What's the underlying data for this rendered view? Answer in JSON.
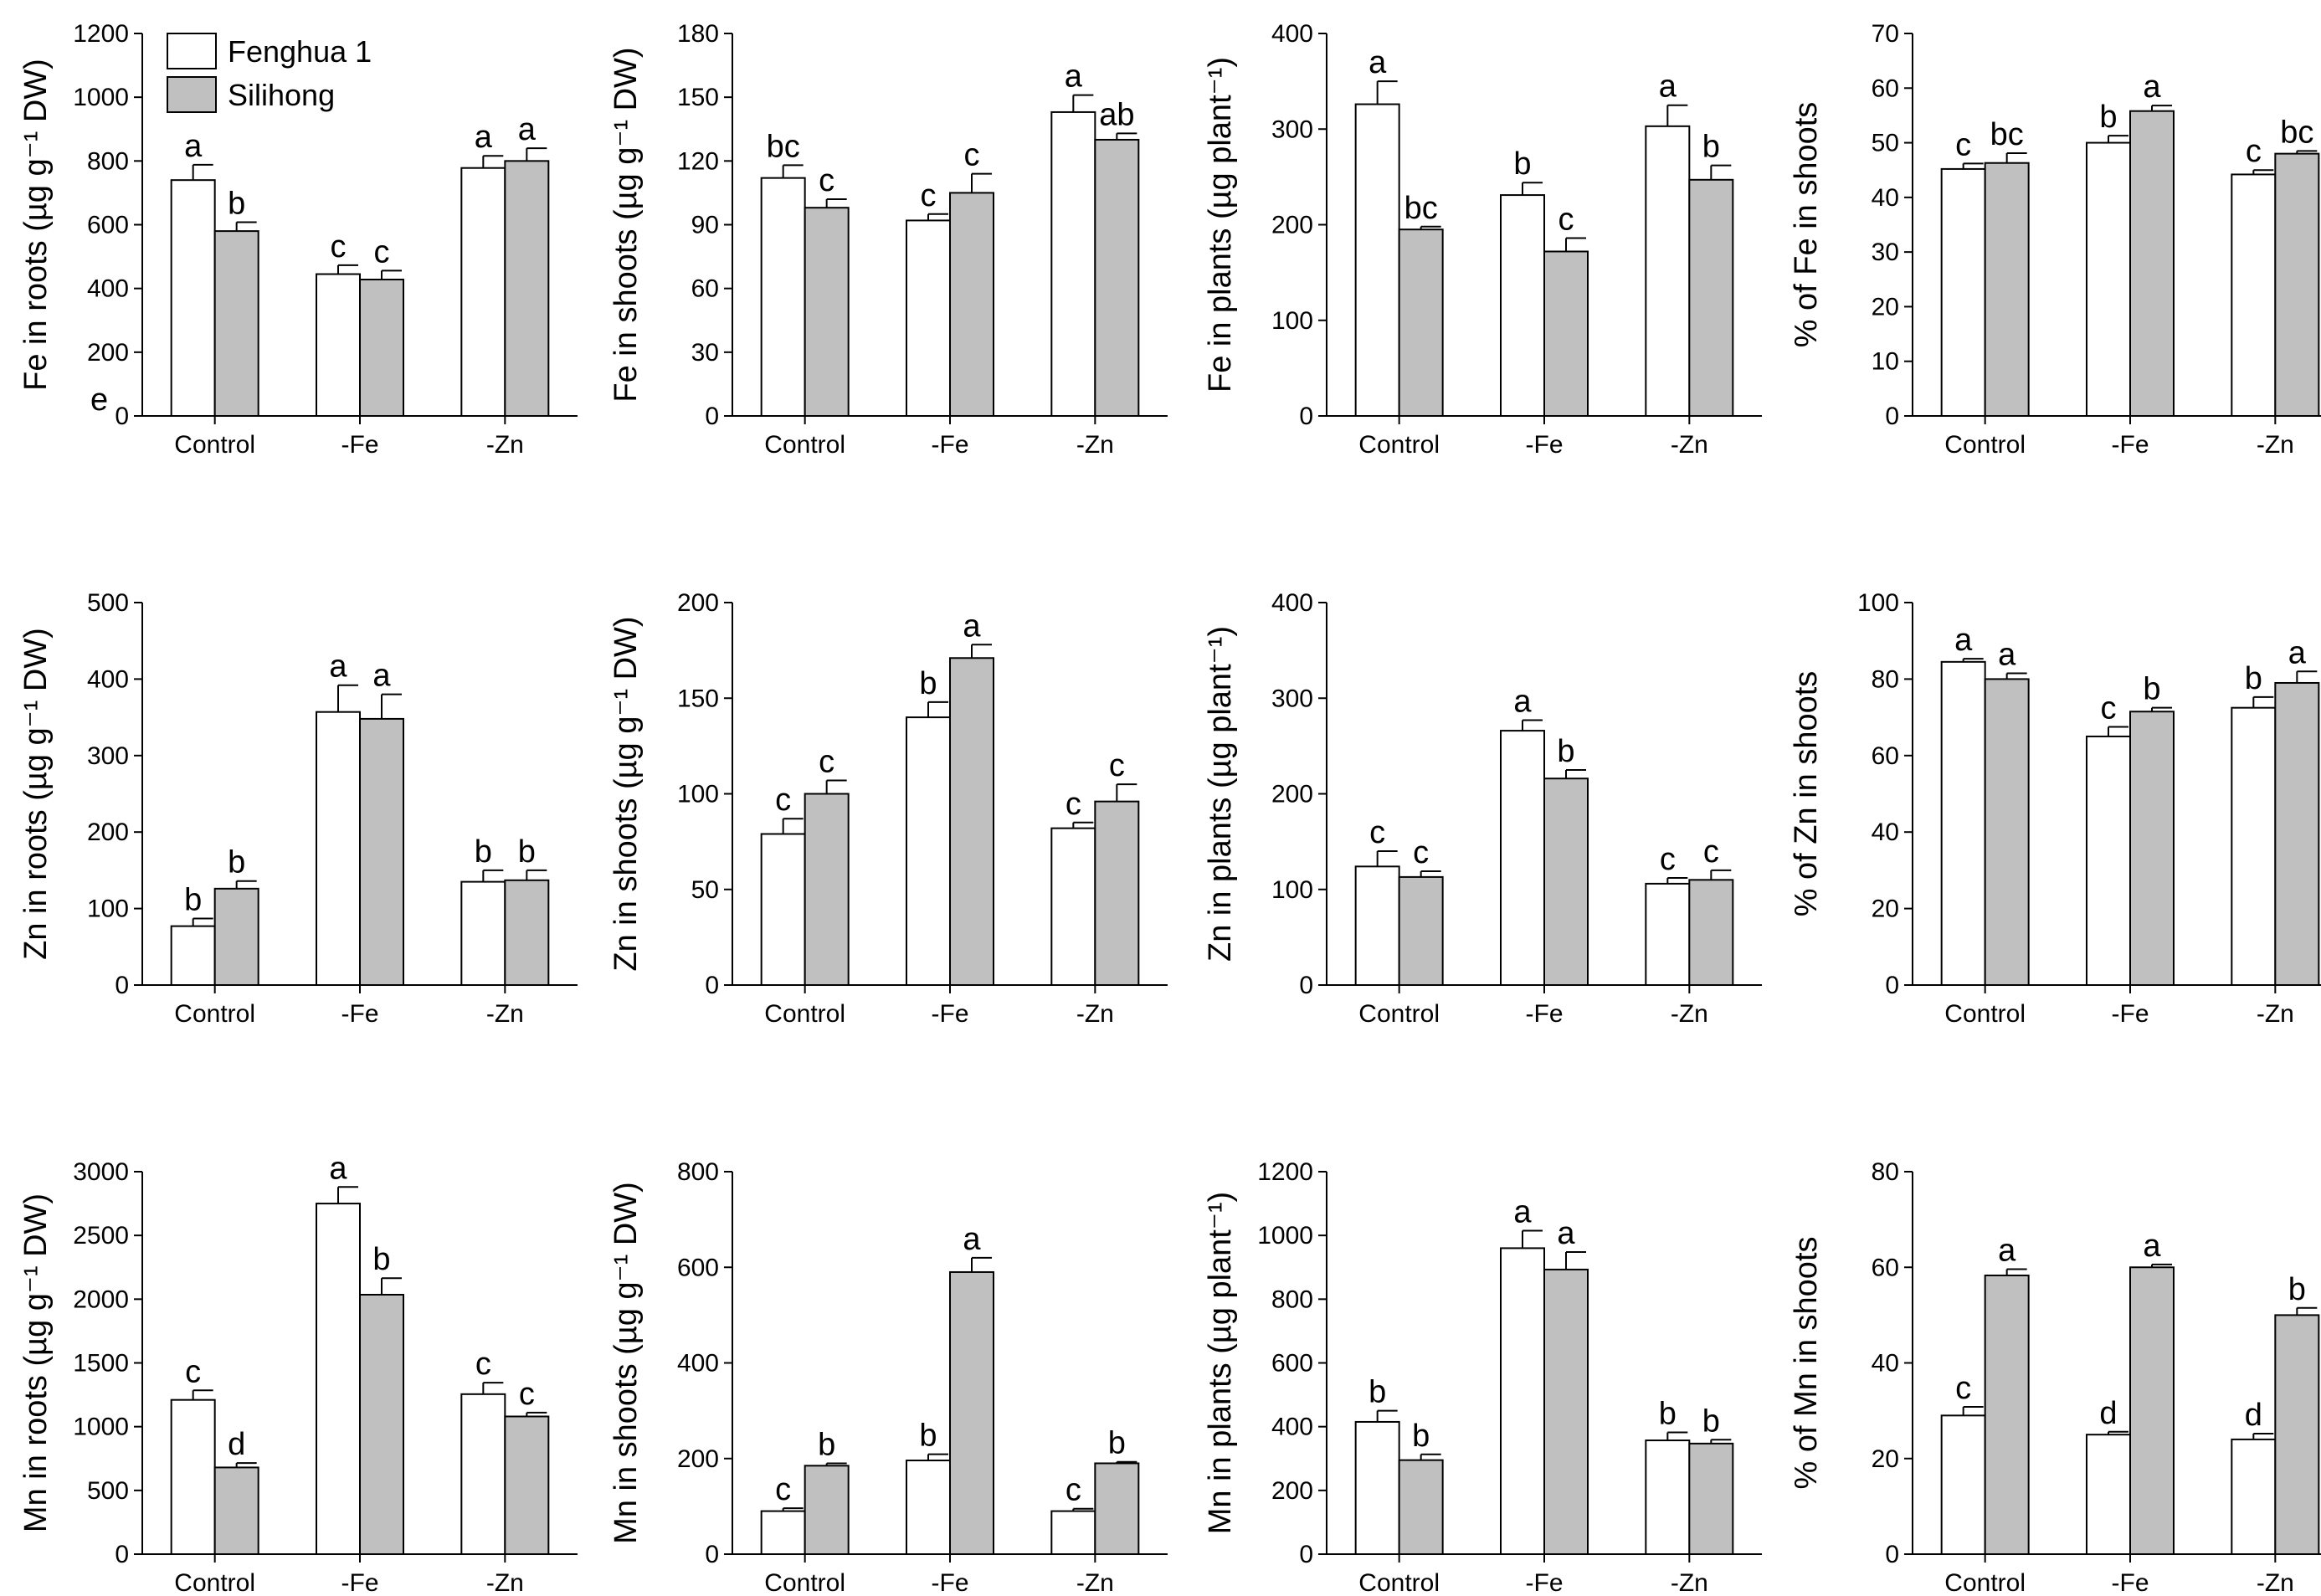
{
  "legend": [
    {
      "label": "Fenghua 1",
      "color": "#ffffff"
    },
    {
      "label": "Silihong",
      "color": "#c0c0c0"
    }
  ],
  "categories": [
    "Control",
    "-Fe",
    "-Zn"
  ],
  "panel_letter": "e",
  "chart_data": [
    {
      "type": "bar",
      "title": "",
      "ylabel": "Fe in roots (µg g⁻¹ DW)",
      "ylim": [
        0,
        1200
      ],
      "yticks": [
        0,
        200,
        400,
        600,
        800,
        1000,
        1200
      ],
      "categories": [
        "Control",
        "-Fe",
        "-Zn"
      ],
      "series": [
        {
          "name": "Fenghua 1",
          "values": [
            740,
            445,
            778
          ],
          "errors": [
            48,
            28,
            38
          ],
          "letters": [
            "a",
            "c",
            "a"
          ]
        },
        {
          "name": "Silihong",
          "values": [
            580,
            428,
            800
          ],
          "errors": [
            28,
            28,
            40
          ],
          "letters": [
            "b",
            "c",
            "a"
          ]
        }
      ]
    },
    {
      "type": "bar",
      "title": "",
      "ylabel": "Fe in shoots (µg g⁻¹ DW)",
      "ylim": [
        0,
        180
      ],
      "yticks": [
        0,
        30,
        60,
        90,
        120,
        150,
        180
      ],
      "categories": [
        "Control",
        "-Fe",
        "-Zn"
      ],
      "series": [
        {
          "name": "Fenghua 1",
          "values": [
            112,
            92,
            143
          ],
          "errors": [
            6,
            3,
            8
          ],
          "letters": [
            "bc",
            "c",
            "a"
          ]
        },
        {
          "name": "Silihong",
          "values": [
            98,
            105,
            130
          ],
          "errors": [
            4,
            9,
            3
          ],
          "letters": [
            "c",
            "c",
            "ab"
          ]
        }
      ]
    },
    {
      "type": "bar",
      "title": "",
      "ylabel": "Fe in plants (µg plant⁻¹)",
      "ylim": [
        0,
        400
      ],
      "yticks": [
        0,
        100,
        200,
        300,
        400
      ],
      "categories": [
        "Control",
        "-Fe",
        "-Zn"
      ],
      "series": [
        {
          "name": "Fenghua 1",
          "values": [
            326,
            231,
            303
          ],
          "errors": [
            24,
            13,
            22
          ],
          "letters": [
            "a",
            "b",
            "a"
          ]
        },
        {
          "name": "Silihong",
          "values": [
            195,
            172,
            247
          ],
          "errors": [
            3,
            14,
            15
          ],
          "letters": [
            "bc",
            "c",
            "b"
          ]
        }
      ]
    },
    {
      "type": "bar",
      "title": "",
      "ylabel": "% of Fe in shoots",
      "ylim": [
        0,
        70
      ],
      "yticks": [
        0,
        10,
        20,
        30,
        40,
        50,
        60,
        70
      ],
      "categories": [
        "Control",
        "-Fe",
        "-Zn"
      ],
      "series": [
        {
          "name": "Fenghua 1",
          "values": [
            45.2,
            50,
            44.2
          ],
          "errors": [
            1,
            1.3,
            0.8
          ],
          "letters": [
            "c",
            "b",
            "c"
          ]
        },
        {
          "name": "Silihong",
          "values": [
            46.3,
            55.8,
            48
          ],
          "errors": [
            1.8,
            1,
            0.5
          ],
          "letters": [
            "bc",
            "a",
            "bc"
          ]
        }
      ]
    },
    {
      "type": "bar",
      "title": "",
      "ylabel": "Zn in roots (µg g⁻¹ DW)",
      "ylim": [
        0,
        500
      ],
      "yticks": [
        0,
        100,
        200,
        300,
        400,
        500
      ],
      "categories": [
        "Control",
        "-Fe",
        "-Zn"
      ],
      "series": [
        {
          "name": "Fenghua 1",
          "values": [
            77,
            357,
            135
          ],
          "errors": [
            10,
            35,
            15
          ],
          "letters": [
            "b",
            "a",
            "b"
          ]
        },
        {
          "name": "Silihong",
          "values": [
            126,
            348,
            137
          ],
          "errors": [
            10,
            32,
            13
          ],
          "letters": [
            "b",
            "a",
            "b"
          ]
        }
      ]
    },
    {
      "type": "bar",
      "title": "",
      "ylabel": "Zn in shoots (µg g⁻¹ DW)",
      "ylim": [
        0,
        200
      ],
      "yticks": [
        0,
        50,
        100,
        150,
        200
      ],
      "categories": [
        "Control",
        "-Fe",
        "-Zn"
      ],
      "series": [
        {
          "name": "Fenghua 1",
          "values": [
            79,
            140,
            82
          ],
          "errors": [
            8,
            8,
            3
          ],
          "letters": [
            "c",
            "b",
            "c"
          ]
        },
        {
          "name": "Silihong",
          "values": [
            100,
            171,
            96
          ],
          "errors": [
            7,
            7,
            9
          ],
          "letters": [
            "c",
            "a",
            "c"
          ]
        }
      ]
    },
    {
      "type": "bar",
      "title": "",
      "ylabel": "Zn in plants (µg plant⁻¹)",
      "ylim": [
        0,
        400
      ],
      "yticks": [
        0,
        100,
        200,
        300,
        400
      ],
      "categories": [
        "Control",
        "-Fe",
        "-Zn"
      ],
      "series": [
        {
          "name": "Fenghua 1",
          "values": [
            124,
            266,
            106
          ],
          "errors": [
            16,
            11,
            6
          ],
          "letters": [
            "c",
            "a",
            "c"
          ]
        },
        {
          "name": "Silihong",
          "values": [
            113,
            216,
            110
          ],
          "errors": [
            6,
            9,
            10
          ],
          "letters": [
            "c",
            "b",
            "c"
          ]
        }
      ]
    },
    {
      "type": "bar",
      "title": "",
      "ylabel": "% of Zn in shoots",
      "ylim": [
        0,
        100
      ],
      "yticks": [
        0,
        20,
        40,
        60,
        80,
        100
      ],
      "categories": [
        "Control",
        "-Fe",
        "-Zn"
      ],
      "series": [
        {
          "name": "Fenghua 1",
          "values": [
            84.5,
            65,
            72.5
          ],
          "errors": [
            0.8,
            2.5,
            2.8
          ],
          "letters": [
            "a",
            "c",
            "b"
          ]
        },
        {
          "name": "Silihong",
          "values": [
            80,
            71.5,
            79
          ],
          "errors": [
            1.5,
            1,
            3
          ],
          "letters": [
            "a",
            "b",
            "a"
          ]
        }
      ]
    },
    {
      "type": "bar",
      "title": "",
      "ylabel": "Mn in roots (µg g⁻¹ DW)",
      "ylim": [
        0,
        3000
      ],
      "yticks": [
        0,
        500,
        1000,
        1500,
        2000,
        2500,
        3000
      ],
      "categories": [
        "Control",
        "-Fe",
        "-Zn"
      ],
      "series": [
        {
          "name": "Fenghua 1",
          "values": [
            1210,
            2750,
            1255
          ],
          "errors": [
            75,
            130,
            90
          ],
          "letters": [
            "c",
            "a",
            "c"
          ]
        },
        {
          "name": "Silihong",
          "values": [
            680,
            2035,
            1080
          ],
          "errors": [
            35,
            130,
            30
          ],
          "letters": [
            "d",
            "b",
            "c"
          ]
        }
      ]
    },
    {
      "type": "bar",
      "title": "",
      "ylabel": "Mn in shoots (µg g⁻¹ DW)",
      "ylim": [
        0,
        800
      ],
      "yticks": [
        0,
        200,
        400,
        600,
        800
      ],
      "categories": [
        "Control",
        "-Fe",
        "-Zn"
      ],
      "series": [
        {
          "name": "Fenghua 1",
          "values": [
            90,
            196,
            90
          ],
          "errors": [
            6,
            13,
            5
          ],
          "letters": [
            "c",
            "b",
            "c"
          ]
        },
        {
          "name": "Silihong",
          "values": [
            185,
            590,
            190
          ],
          "errors": [
            5,
            30,
            3
          ],
          "letters": [
            "b",
            "a",
            "b"
          ]
        }
      ]
    },
    {
      "type": "bar",
      "title": "",
      "ylabel": "Mn in plants (µg plant⁻¹)",
      "ylim": [
        0,
        1200
      ],
      "yticks": [
        0,
        200,
        400,
        600,
        800,
        1000,
        1200
      ],
      "categories": [
        "Control",
        "-Fe",
        "-Zn"
      ],
      "series": [
        {
          "name": "Fenghua 1",
          "values": [
            415,
            960,
            357
          ],
          "errors": [
            35,
            55,
            25
          ],
          "letters": [
            "b",
            "a",
            "b"
          ]
        },
        {
          "name": "Silihong",
          "values": [
            295,
            893,
            347
          ],
          "errors": [
            18,
            55,
            12
          ],
          "letters": [
            "b",
            "a",
            "b"
          ]
        }
      ]
    },
    {
      "type": "bar",
      "title": "",
      "ylabel": "% of Mn in shoots",
      "ylim": [
        0,
        80
      ],
      "yticks": [
        0,
        20,
        40,
        60,
        80
      ],
      "categories": [
        "Control",
        "-Fe",
        "-Zn"
      ],
      "series": [
        {
          "name": "Fenghua 1",
          "values": [
            29,
            25,
            24
          ],
          "errors": [
            1.8,
            0.6,
            1.2
          ],
          "letters": [
            "c",
            "d",
            "d"
          ]
        },
        {
          "name": "Silihong",
          "values": [
            58.3,
            60,
            50
          ],
          "errors": [
            1.3,
            0.6,
            1.5
          ],
          "letters": [
            "a",
            "a",
            "b"
          ]
        }
      ]
    }
  ]
}
